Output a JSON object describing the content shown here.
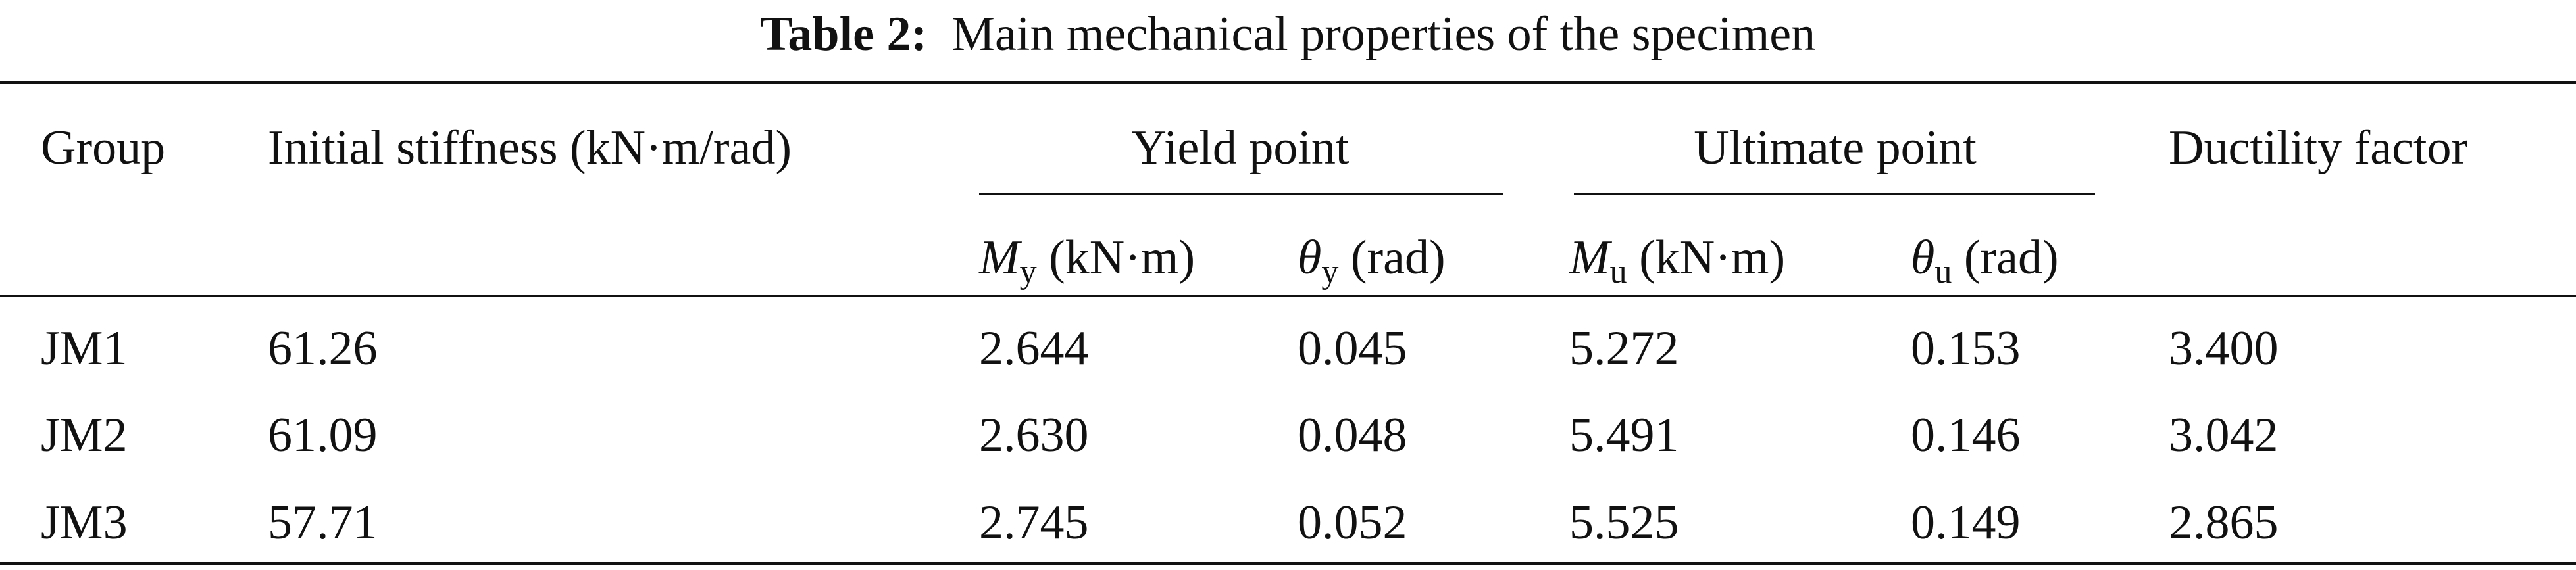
{
  "caption": {
    "label": "Table 2:",
    "title": "Main mechanical properties of the specimen"
  },
  "table": {
    "headers": [
      "Group",
      "Initial stiffness (kN·m/rad)",
      "Yield point",
      "Ultimate point",
      "Ductility factor"
    ],
    "subheaders": [
      {
        "symbol": "M",
        "sub": "y",
        "unit": "(kN·m)"
      },
      {
        "symbol": "θ",
        "sub": "y",
        "unit": "(rad)"
      },
      {
        "symbol": "M",
        "sub": "u",
        "unit": "(kN·m)"
      },
      {
        "symbol": "θ",
        "sub": "u",
        "unit": "(rad)"
      }
    ],
    "rows": [
      [
        "JM1",
        "61.26",
        "2.644",
        "0.045",
        "5.272",
        "0.153",
        "3.400"
      ],
      [
        "JM2",
        "61.09",
        "2.630",
        "0.048",
        "5.491",
        "0.146",
        "3.042"
      ],
      [
        "JM3",
        "57.71",
        "2.745",
        "0.052",
        "5.525",
        "0.149",
        "2.865"
      ]
    ]
  }
}
